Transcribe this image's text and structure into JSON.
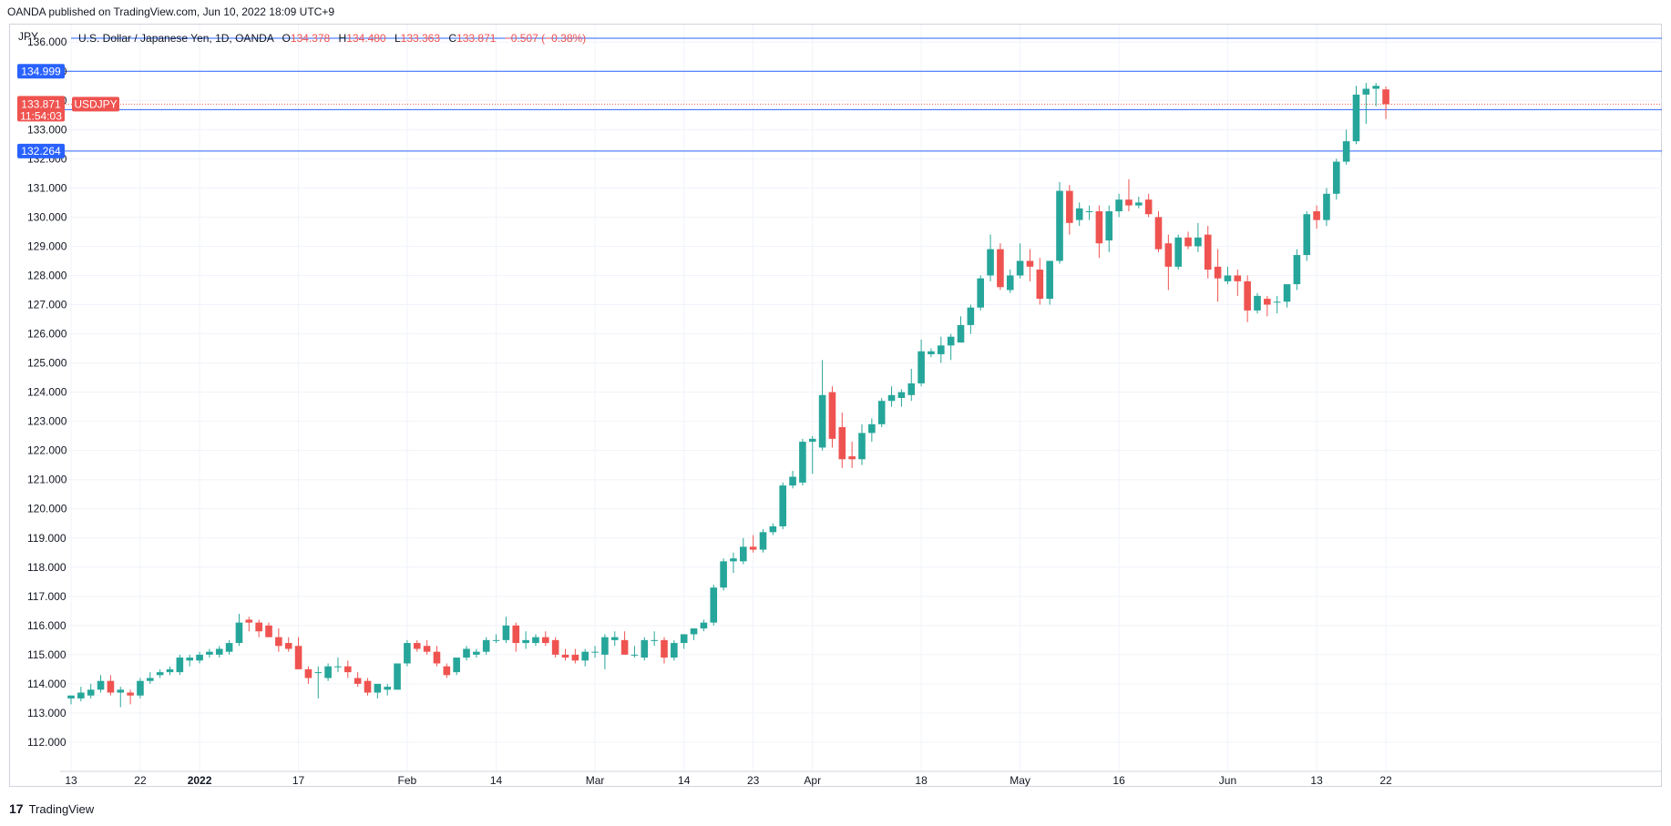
{
  "header": {
    "publisher_line": "OANDA published on TradingView.com, Jun 10, 2022 18:09 UTC+9"
  },
  "legend": {
    "currency_label": "JPY",
    "description": "U.S. Dollar / Japanese Yen, 1D, OANDA",
    "o_label": "O",
    "o_value": "134.378",
    "h_label": "H",
    "h_value": "134.480",
    "l_label": "L",
    "l_value": "133.363",
    "c_label": "C",
    "c_value": "133.871",
    "change": "−0.507 (−0.38%)"
  },
  "footer": {
    "brand": "TradingView",
    "logo_text": "17"
  },
  "colors": {
    "up": "#26a69a",
    "down": "#ef5350",
    "hline": "#2962ff",
    "grid": "#f0f3fa",
    "axis_text": "#131722",
    "price_line": "#ef5350"
  },
  "chart_data": {
    "type": "candlestick",
    "symbol": "USDJPY",
    "ylim": [
      111.0,
      136.6
    ],
    "y_ticks": [
      112,
      113,
      114,
      115,
      116,
      117,
      118,
      119,
      120,
      121,
      122,
      123,
      124,
      125,
      126,
      127,
      128,
      129,
      130,
      131,
      132,
      133,
      134,
      135,
      136
    ],
    "x_ticks": [
      {
        "label": "13",
        "index": 0
      },
      {
        "label": "22",
        "index": 7
      },
      {
        "label": "2022",
        "index": 13,
        "bold": true
      },
      {
        "label": "17",
        "index": 23
      },
      {
        "label": "Feb",
        "index": 34
      },
      {
        "label": "14",
        "index": 43
      },
      {
        "label": "Mar",
        "index": 53
      },
      {
        "label": "14",
        "index": 62
      },
      {
        "label": "23",
        "index": 69
      },
      {
        "label": "Apr",
        "index": 75
      },
      {
        "label": "18",
        "index": 86
      },
      {
        "label": "May",
        "index": 96
      },
      {
        "label": "16",
        "index": 106
      },
      {
        "label": "Jun",
        "index": 117
      },
      {
        "label": "13",
        "index": 126
      },
      {
        "label": "22",
        "index": 133
      }
    ],
    "horizontal_lines": [
      {
        "value": "134.999",
        "price": 134.999
      },
      {
        "value": "133.686",
        "price": 133.686
      },
      {
        "value": "132.264",
        "price": 132.264
      }
    ],
    "last_price": {
      "value": "133.871",
      "price": 133.871,
      "countdown": "11:54:03",
      "symbol": "USDJPY"
    },
    "candles": [
      {
        "o": 113.5,
        "h": 113.6,
        "l": 113.3,
        "c": 113.6
      },
      {
        "o": 113.5,
        "h": 113.9,
        "l": 113.4,
        "c": 113.7
      },
      {
        "o": 113.6,
        "h": 114.0,
        "l": 113.5,
        "c": 113.8
      },
      {
        "o": 113.8,
        "h": 114.3,
        "l": 113.7,
        "c": 114.1
      },
      {
        "o": 114.1,
        "h": 114.3,
        "l": 113.6,
        "c": 113.7
      },
      {
        "o": 113.7,
        "h": 113.9,
        "l": 113.2,
        "c": 113.8
      },
      {
        "o": 113.7,
        "h": 113.8,
        "l": 113.3,
        "c": 113.6
      },
      {
        "o": 113.6,
        "h": 114.2,
        "l": 113.5,
        "c": 114.1
      },
      {
        "o": 114.1,
        "h": 114.4,
        "l": 114.0,
        "c": 114.2
      },
      {
        "o": 114.3,
        "h": 114.5,
        "l": 114.2,
        "c": 114.4
      },
      {
        "o": 114.4,
        "h": 114.6,
        "l": 114.3,
        "c": 114.5
      },
      {
        "o": 114.4,
        "h": 115.0,
        "l": 114.3,
        "c": 114.9
      },
      {
        "o": 114.8,
        "h": 115.0,
        "l": 114.6,
        "c": 114.9
      },
      {
        "o": 114.8,
        "h": 115.1,
        "l": 114.7,
        "c": 115.0
      },
      {
        "o": 115.0,
        "h": 115.2,
        "l": 114.9,
        "c": 115.1
      },
      {
        "o": 115.0,
        "h": 115.3,
        "l": 114.9,
        "c": 115.2
      },
      {
        "o": 115.1,
        "h": 115.5,
        "l": 115.0,
        "c": 115.4
      },
      {
        "o": 115.4,
        "h": 116.4,
        "l": 115.3,
        "c": 116.1
      },
      {
        "o": 116.2,
        "h": 116.3,
        "l": 115.8,
        "c": 116.1
      },
      {
        "o": 116.1,
        "h": 116.2,
        "l": 115.6,
        "c": 115.8
      },
      {
        "o": 116.0,
        "h": 116.1,
        "l": 115.6,
        "c": 115.6
      },
      {
        "o": 115.6,
        "h": 115.9,
        "l": 115.1,
        "c": 115.3
      },
      {
        "o": 115.4,
        "h": 115.6,
        "l": 115.1,
        "c": 115.2
      },
      {
        "o": 115.3,
        "h": 115.6,
        "l": 114.5,
        "c": 114.5
      },
      {
        "o": 114.5,
        "h": 114.6,
        "l": 114.0,
        "c": 114.2
      },
      {
        "o": 114.4,
        "h": 114.6,
        "l": 113.5,
        "c": 114.4
      },
      {
        "o": 114.2,
        "h": 114.7,
        "l": 114.1,
        "c": 114.6
      },
      {
        "o": 114.6,
        "h": 114.9,
        "l": 114.4,
        "c": 114.6
      },
      {
        "o": 114.6,
        "h": 114.8,
        "l": 114.2,
        "c": 114.4
      },
      {
        "o": 114.2,
        "h": 114.4,
        "l": 113.9,
        "c": 114.0
      },
      {
        "o": 114.1,
        "h": 114.2,
        "l": 113.6,
        "c": 113.7
      },
      {
        "o": 113.7,
        "h": 114.0,
        "l": 113.5,
        "c": 114.0
      },
      {
        "o": 113.8,
        "h": 114.0,
        "l": 113.6,
        "c": 113.9
      },
      {
        "o": 113.8,
        "h": 114.7,
        "l": 113.8,
        "c": 114.7
      },
      {
        "o": 114.7,
        "h": 115.5,
        "l": 114.6,
        "c": 115.4
      },
      {
        "o": 115.4,
        "h": 115.5,
        "l": 115.1,
        "c": 115.2
      },
      {
        "o": 115.3,
        "h": 115.5,
        "l": 115.0,
        "c": 115.1
      },
      {
        "o": 115.1,
        "h": 115.3,
        "l": 114.6,
        "c": 114.7
      },
      {
        "o": 114.6,
        "h": 114.7,
        "l": 114.2,
        "c": 114.3
      },
      {
        "o": 114.4,
        "h": 114.8,
        "l": 114.3,
        "c": 114.9
      },
      {
        "o": 114.9,
        "h": 115.3,
        "l": 114.8,
        "c": 115.2
      },
      {
        "o": 115.0,
        "h": 115.2,
        "l": 114.9,
        "c": 115.1
      },
      {
        "o": 115.1,
        "h": 115.6,
        "l": 115.0,
        "c": 115.5
      },
      {
        "o": 115.5,
        "h": 115.7,
        "l": 115.4,
        "c": 115.5
      },
      {
        "o": 115.5,
        "h": 116.3,
        "l": 115.4,
        "c": 116.0
      },
      {
        "o": 116.0,
        "h": 116.1,
        "l": 115.1,
        "c": 115.4
      },
      {
        "o": 115.4,
        "h": 115.8,
        "l": 115.2,
        "c": 115.5
      },
      {
        "o": 115.4,
        "h": 115.7,
        "l": 115.3,
        "c": 115.6
      },
      {
        "o": 115.6,
        "h": 115.8,
        "l": 115.3,
        "c": 115.4
      },
      {
        "o": 115.5,
        "h": 115.6,
        "l": 114.9,
        "c": 115.0
      },
      {
        "o": 115.0,
        "h": 115.2,
        "l": 114.8,
        "c": 114.9
      },
      {
        "o": 115.0,
        "h": 115.2,
        "l": 114.7,
        "c": 114.8
      },
      {
        "o": 114.8,
        "h": 115.2,
        "l": 114.6,
        "c": 115.1
      },
      {
        "o": 115.1,
        "h": 115.3,
        "l": 114.9,
        "c": 115.1
      },
      {
        "o": 115.0,
        "h": 115.7,
        "l": 114.5,
        "c": 115.6
      },
      {
        "o": 115.5,
        "h": 115.8,
        "l": 115.3,
        "c": 115.6
      },
      {
        "o": 115.5,
        "h": 115.8,
        "l": 115.0,
        "c": 115.0
      },
      {
        "o": 115.0,
        "h": 115.3,
        "l": 114.9,
        "c": 115.0
      },
      {
        "o": 114.9,
        "h": 115.6,
        "l": 114.8,
        "c": 115.5
      },
      {
        "o": 115.5,
        "h": 115.8,
        "l": 115.3,
        "c": 115.5
      },
      {
        "o": 115.5,
        "h": 115.6,
        "l": 114.7,
        "c": 114.9
      },
      {
        "o": 114.9,
        "h": 115.5,
        "l": 114.8,
        "c": 115.4
      },
      {
        "o": 115.4,
        "h": 115.7,
        "l": 115.2,
        "c": 115.7
      },
      {
        "o": 115.7,
        "h": 115.9,
        "l": 115.5,
        "c": 115.9
      },
      {
        "o": 115.9,
        "h": 116.2,
        "l": 115.8,
        "c": 116.1
      },
      {
        "o": 116.1,
        "h": 117.4,
        "l": 116.0,
        "c": 117.3
      },
      {
        "o": 117.3,
        "h": 118.3,
        "l": 117.2,
        "c": 118.2
      },
      {
        "o": 118.2,
        "h": 118.5,
        "l": 117.8,
        "c": 118.3
      },
      {
        "o": 118.2,
        "h": 119.0,
        "l": 118.1,
        "c": 118.7
      },
      {
        "o": 118.7,
        "h": 119.1,
        "l": 118.5,
        "c": 118.6
      },
      {
        "o": 118.6,
        "h": 119.3,
        "l": 118.5,
        "c": 119.2
      },
      {
        "o": 119.2,
        "h": 119.5,
        "l": 119.1,
        "c": 119.4
      },
      {
        "o": 119.4,
        "h": 120.9,
        "l": 119.3,
        "c": 120.8
      },
      {
        "o": 120.8,
        "h": 121.3,
        "l": 120.7,
        "c": 121.1
      },
      {
        "o": 120.9,
        "h": 122.4,
        "l": 120.8,
        "c": 122.3
      },
      {
        "o": 122.3,
        "h": 122.5,
        "l": 121.2,
        "c": 122.4
      },
      {
        "o": 122.1,
        "h": 125.1,
        "l": 122.0,
        "c": 123.9
      },
      {
        "o": 124.0,
        "h": 124.2,
        "l": 122.1,
        "c": 122.4
      },
      {
        "o": 122.8,
        "h": 123.3,
        "l": 121.4,
        "c": 121.7
      },
      {
        "o": 121.8,
        "h": 122.3,
        "l": 121.4,
        "c": 121.7
      },
      {
        "o": 121.7,
        "h": 122.9,
        "l": 121.5,
        "c": 122.6
      },
      {
        "o": 122.6,
        "h": 123.1,
        "l": 122.3,
        "c": 122.9
      },
      {
        "o": 122.9,
        "h": 123.8,
        "l": 122.8,
        "c": 123.7
      },
      {
        "o": 123.7,
        "h": 124.2,
        "l": 123.5,
        "c": 123.9
      },
      {
        "o": 123.8,
        "h": 124.1,
        "l": 123.5,
        "c": 124.0
      },
      {
        "o": 123.9,
        "h": 124.8,
        "l": 123.7,
        "c": 124.3
      },
      {
        "o": 124.3,
        "h": 125.8,
        "l": 124.2,
        "c": 125.4
      },
      {
        "o": 125.3,
        "h": 125.5,
        "l": 125.2,
        "c": 125.4
      },
      {
        "o": 125.3,
        "h": 125.9,
        "l": 125.0,
        "c": 125.6
      },
      {
        "o": 125.6,
        "h": 126.0,
        "l": 125.1,
        "c": 125.9
      },
      {
        "o": 125.7,
        "h": 126.6,
        "l": 125.7,
        "c": 126.3
      },
      {
        "o": 126.3,
        "h": 127.0,
        "l": 126.0,
        "c": 126.9
      },
      {
        "o": 126.9,
        "h": 128.0,
        "l": 126.8,
        "c": 127.9
      },
      {
        "o": 128.0,
        "h": 129.4,
        "l": 127.8,
        "c": 128.9
      },
      {
        "o": 128.9,
        "h": 129.1,
        "l": 127.5,
        "c": 127.6
      },
      {
        "o": 127.5,
        "h": 128.2,
        "l": 127.4,
        "c": 128.0
      },
      {
        "o": 128.0,
        "h": 129.1,
        "l": 127.9,
        "c": 128.5
      },
      {
        "o": 128.5,
        "h": 128.9,
        "l": 127.8,
        "c": 128.3
      },
      {
        "o": 128.2,
        "h": 128.6,
        "l": 127.0,
        "c": 127.2
      },
      {
        "o": 127.2,
        "h": 128.5,
        "l": 127.0,
        "c": 128.5
      },
      {
        "o": 128.5,
        "h": 131.2,
        "l": 128.4,
        "c": 130.9
      },
      {
        "o": 130.9,
        "h": 131.1,
        "l": 129.4,
        "c": 129.8
      },
      {
        "o": 129.9,
        "h": 130.5,
        "l": 129.7,
        "c": 130.3
      },
      {
        "o": 130.2,
        "h": 130.4,
        "l": 129.9,
        "c": 130.2
      },
      {
        "o": 130.2,
        "h": 130.4,
        "l": 128.6,
        "c": 129.1
      },
      {
        "o": 129.2,
        "h": 130.4,
        "l": 128.8,
        "c": 130.2
      },
      {
        "o": 130.2,
        "h": 130.8,
        "l": 130.0,
        "c": 130.6
      },
      {
        "o": 130.6,
        "h": 131.3,
        "l": 130.2,
        "c": 130.4
      },
      {
        "o": 130.4,
        "h": 130.7,
        "l": 130.3,
        "c": 130.5
      },
      {
        "o": 130.6,
        "h": 130.8,
        "l": 130.0,
        "c": 130.1
      },
      {
        "o": 130.0,
        "h": 130.2,
        "l": 128.8,
        "c": 128.9
      },
      {
        "o": 129.1,
        "h": 129.4,
        "l": 127.5,
        "c": 128.3
      },
      {
        "o": 128.3,
        "h": 129.4,
        "l": 128.2,
        "c": 129.3
      },
      {
        "o": 129.3,
        "h": 129.5,
        "l": 128.9,
        "c": 129.0
      },
      {
        "o": 129.0,
        "h": 129.8,
        "l": 128.8,
        "c": 129.3
      },
      {
        "o": 129.4,
        "h": 129.7,
        "l": 127.9,
        "c": 128.2
      },
      {
        "o": 128.3,
        "h": 128.9,
        "l": 127.1,
        "c": 127.9
      },
      {
        "o": 127.8,
        "h": 128.3,
        "l": 127.7,
        "c": 128.0
      },
      {
        "o": 128.0,
        "h": 128.2,
        "l": 127.3,
        "c": 127.8
      },
      {
        "o": 127.8,
        "h": 128.0,
        "l": 126.4,
        "c": 126.8
      },
      {
        "o": 126.8,
        "h": 127.4,
        "l": 126.7,
        "c": 127.3
      },
      {
        "o": 127.2,
        "h": 127.3,
        "l": 126.6,
        "c": 127.0
      },
      {
        "o": 127.1,
        "h": 127.3,
        "l": 126.7,
        "c": 127.1
      },
      {
        "o": 127.1,
        "h": 127.5,
        "l": 126.9,
        "c": 127.7
      },
      {
        "o": 127.7,
        "h": 128.9,
        "l": 127.5,
        "c": 128.7
      },
      {
        "o": 128.7,
        "h": 130.2,
        "l": 128.5,
        "c": 130.1
      },
      {
        "o": 130.2,
        "h": 130.4,
        "l": 129.6,
        "c": 129.9
      },
      {
        "o": 129.9,
        "h": 131.0,
        "l": 129.7,
        "c": 130.8
      },
      {
        "o": 130.8,
        "h": 132.0,
        "l": 130.6,
        "c": 131.9
      },
      {
        "o": 131.9,
        "h": 133.0,
        "l": 131.8,
        "c": 132.6
      },
      {
        "o": 132.6,
        "h": 134.5,
        "l": 132.5,
        "c": 134.2
      },
      {
        "o": 134.2,
        "h": 134.6,
        "l": 133.2,
        "c": 134.4
      },
      {
        "o": 134.4,
        "h": 134.6,
        "l": 133.8,
        "c": 134.5
      },
      {
        "o": 134.378,
        "h": 134.48,
        "l": 133.363,
        "c": 133.871
      }
    ]
  }
}
